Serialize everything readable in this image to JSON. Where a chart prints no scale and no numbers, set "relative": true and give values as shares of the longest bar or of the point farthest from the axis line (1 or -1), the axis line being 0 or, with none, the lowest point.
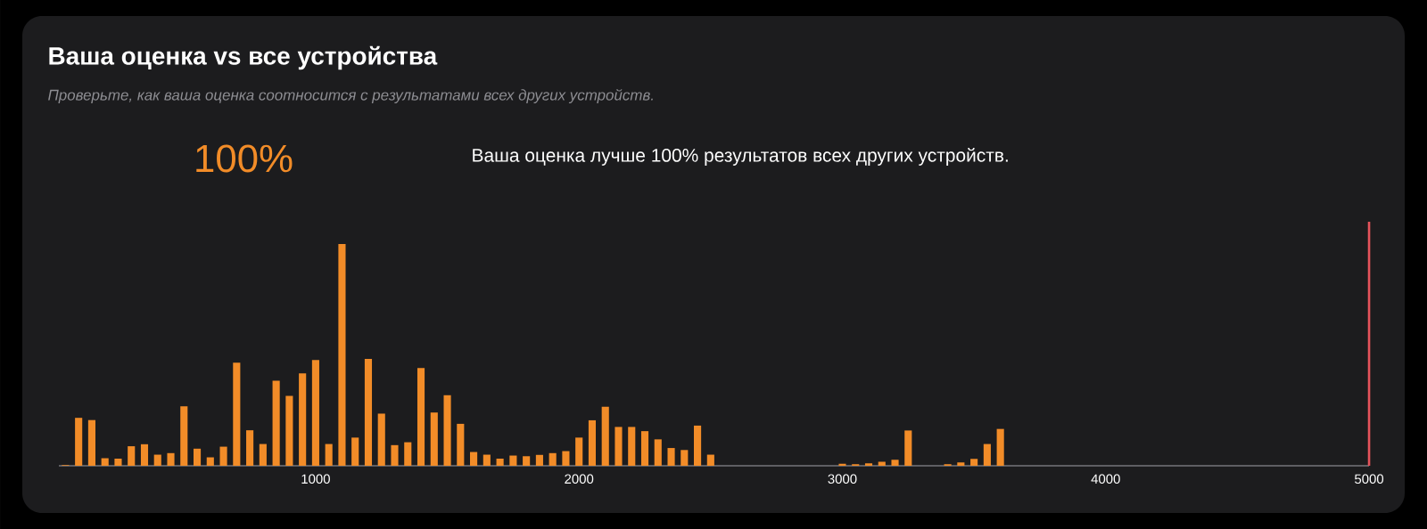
{
  "chart_data": {
    "type": "bar",
    "title": "Ваша оценка vs все устройства",
    "subtitle": "Проверьте, как ваша оценка соотносится с результатами всех других устройств.",
    "annotations": [
      "100%",
      "Ваша оценка лучше 100% результатов всех других устройств."
    ],
    "relative": true,
    "color": "#f28c28",
    "x": [
      50,
      100,
      150,
      200,
      250,
      300,
      350,
      400,
      450,
      500,
      550,
      600,
      650,
      700,
      750,
      800,
      850,
      900,
      950,
      1000,
      1050,
      1100,
      1150,
      1200,
      1250,
      1300,
      1350,
      1400,
      1450,
      1500,
      1550,
      1600,
      1650,
      1700,
      1750,
      1800,
      1850,
      1900,
      1950,
      2000,
      2050,
      2100,
      2150,
      2200,
      2250,
      2300,
      2350,
      2400,
      2450,
      2500,
      3000,
      3050,
      3100,
      3150,
      3200,
      3250,
      3400,
      3450,
      3500,
      3550,
      3600
    ],
    "values": [
      0.003,
      0.216,
      0.206,
      0.034,
      0.032,
      0.088,
      0.097,
      0.05,
      0.057,
      0.268,
      0.077,
      0.038,
      0.086,
      0.465,
      0.16,
      0.098,
      0.383,
      0.315,
      0.416,
      0.477,
      0.098,
      1,
      0.127,
      0.482,
      0.235,
      0.093,
      0.106,
      0.441,
      0.24,
      0.318,
      0.189,
      0.062,
      0.05,
      0.032,
      0.046,
      0.043,
      0.049,
      0.057,
      0.066,
      0.127,
      0.205,
      0.266,
      0.175,
      0.175,
      0.156,
      0.119,
      0.08,
      0.071,
      0.181,
      0.05,
      0.009,
      0.007,
      0.011,
      0.018,
      0.027,
      0.159,
      0.007,
      0.015,
      0.031,
      0.098,
      0.166
    ],
    "xlim": [
      25,
      5000
    ],
    "xticks": [
      {
        "value": 1000,
        "label": "1000"
      },
      {
        "value": 2000,
        "label": "2000"
      },
      {
        "value": 3000,
        "label": "3000"
      },
      {
        "value": 4000,
        "label": "4000"
      },
      {
        "value": 5000,
        "label": "5000"
      }
    ],
    "ref_lines": [
      {
        "axis": "x",
        "value": 5000,
        "color": "#e5535b"
      }
    ]
  }
}
